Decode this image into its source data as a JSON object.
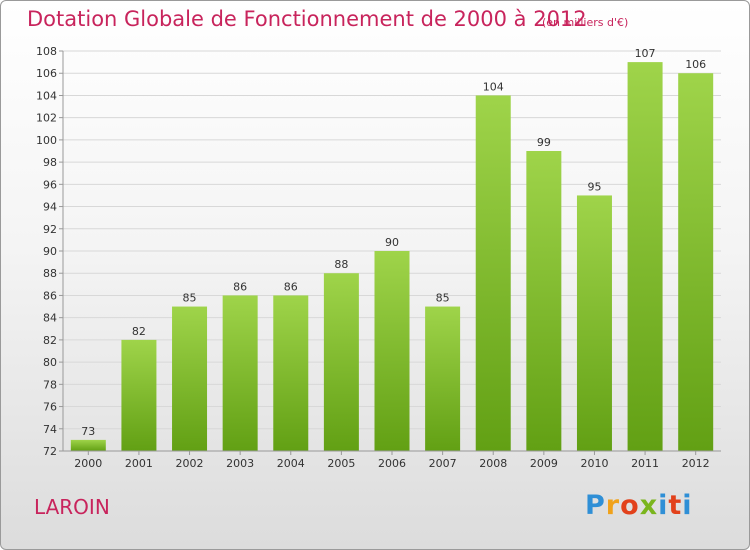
{
  "colors": {
    "title": "#c8245c",
    "bar_light": "#9fd44a",
    "bar_dark": "#62a014",
    "axis": "#999999",
    "grid": "#d8d8d8"
  },
  "footer": {
    "commune": "LAROIN",
    "logo_letters": [
      "P",
      "r",
      "o",
      "x",
      "i",
      "t",
      "i"
    ]
  },
  "chart_data": {
    "type": "bar",
    "title": "Dotation Globale de Fonctionnement de 2000 à 2012",
    "subtitle": "(en milliers d'€)",
    "categories": [
      "2000",
      "2001",
      "2002",
      "2003",
      "2004",
      "2005",
      "2006",
      "2007",
      "2008",
      "2009",
      "2010",
      "2011",
      "2012"
    ],
    "values": [
      73,
      82,
      85,
      86,
      86,
      88,
      90,
      85,
      104,
      99,
      95,
      107,
      106
    ],
    "ylim": [
      72,
      108
    ],
    "yticks": [
      72,
      74,
      76,
      78,
      80,
      82,
      84,
      86,
      88,
      90,
      92,
      94,
      96,
      98,
      100,
      102,
      104,
      106,
      108
    ],
    "xlabel": "",
    "ylabel": "",
    "grid": true,
    "legend": "none"
  }
}
